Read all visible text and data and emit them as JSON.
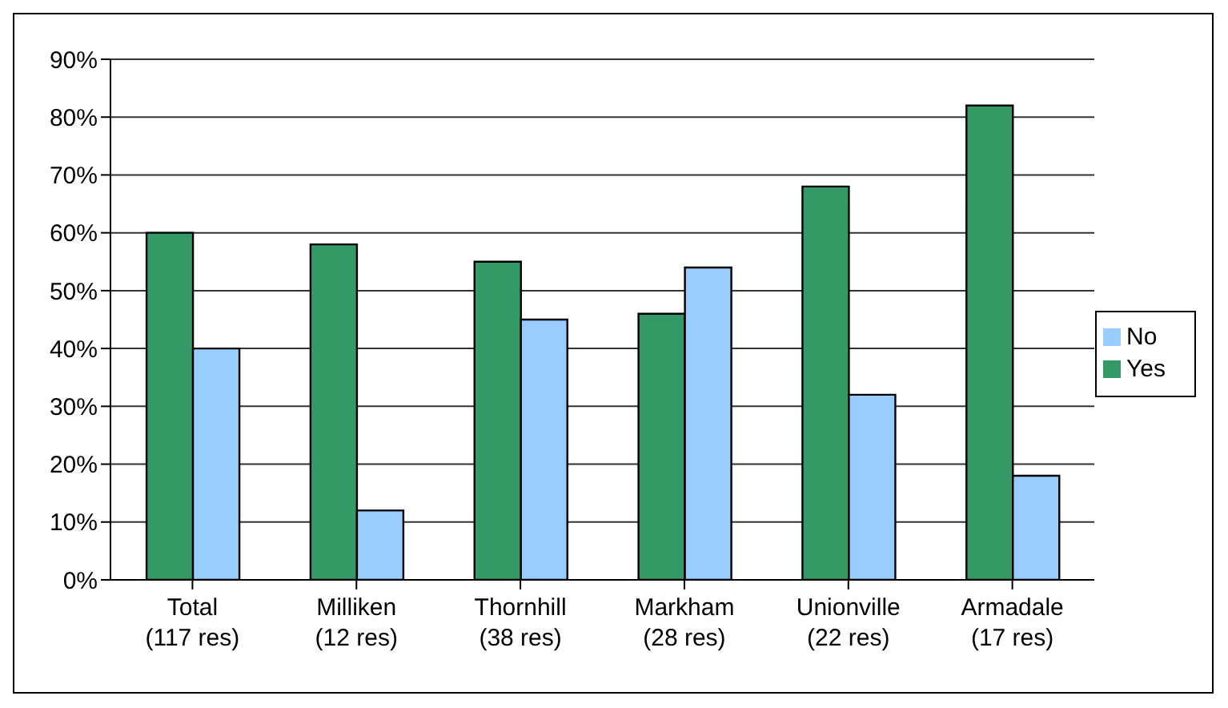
{
  "chart_data": {
    "type": "bar",
    "categories": [
      "Total\n(117 res)",
      "Milliken\n(12 res)",
      "Thornhill\n(38 res)",
      "Markham\n(28 res)",
      "Unionville\n(22 res)",
      "Armadale\n(17 res)"
    ],
    "series": [
      {
        "name": "Yes",
        "color": "#339966",
        "values": [
          60,
          58,
          55,
          46,
          68,
          82
        ]
      },
      {
        "name": "No",
        "color": "#99ccff",
        "values": [
          40,
          12,
          45,
          54,
          32,
          18
        ]
      }
    ],
    "ylim": [
      0,
      90
    ],
    "yticks": [
      {
        "value": 0,
        "label": "0%"
      },
      {
        "value": 10,
        "label": "10%"
      },
      {
        "value": 20,
        "label": "20%"
      },
      {
        "value": 30,
        "label": "30%"
      },
      {
        "value": 40,
        "label": "40%"
      },
      {
        "value": 50,
        "label": "50%"
      },
      {
        "value": 60,
        "label": "60%"
      },
      {
        "value": 70,
        "label": "70%"
      },
      {
        "value": 80,
        "label": "80%"
      },
      {
        "value": 90,
        "label": "90%"
      }
    ],
    "grid": "y",
    "legend": "right"
  }
}
